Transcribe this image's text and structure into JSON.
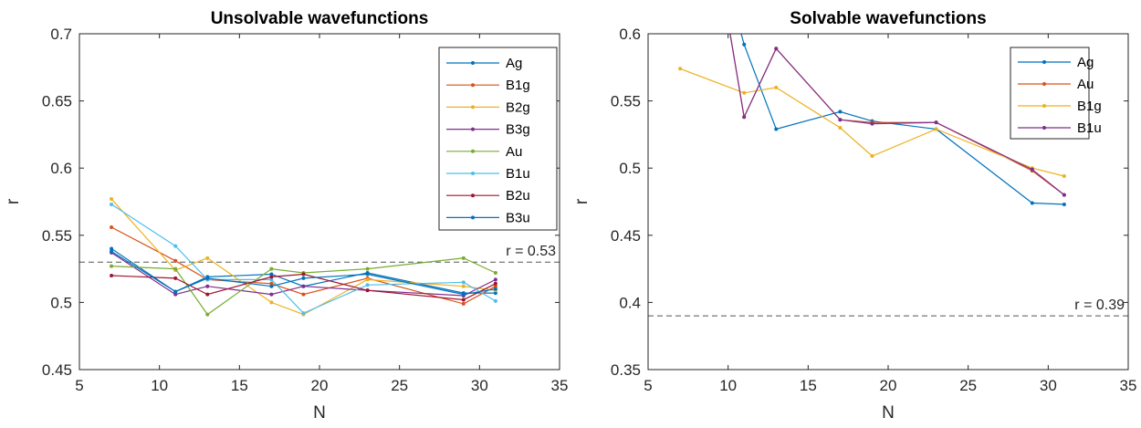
{
  "chart_data": [
    {
      "type": "line",
      "title": "Unsolvable wavefunctions",
      "xlabel": "N",
      "ylabel": "r",
      "xlim": [
        5,
        35
      ],
      "ylim": [
        0.45,
        0.7
      ],
      "xticks": [
        5,
        10,
        15,
        20,
        25,
        30,
        35
      ],
      "yticks": [
        0.45,
        0.5,
        0.55,
        0.6,
        0.65,
        0.7
      ],
      "xtick_labels": [
        "5",
        "10",
        "15",
        "20",
        "25",
        "30",
        "35"
      ],
      "ytick_labels": [
        "0.45",
        "0.5",
        "0.55",
        "0.6",
        "0.65",
        "0.7"
      ],
      "grid": false,
      "legend": "top-right",
      "reference_line": {
        "y": 0.53,
        "label": "r = 0.53",
        "style": "dashed"
      },
      "series": [
        {
          "name": "Ag",
          "color": "#0072BD",
          "x": [
            7,
            11,
            13,
            17,
            19,
            23,
            29,
            31
          ],
          "y": [
            0.54,
            0.508,
            0.519,
            0.521,
            0.512,
            0.522,
            0.507,
            0.507
          ]
        },
        {
          "name": "B1g",
          "color": "#D95319",
          "x": [
            7,
            11,
            13,
            17,
            19,
            23,
            29,
            31
          ],
          "y": [
            0.556,
            0.531,
            0.517,
            0.514,
            0.506,
            0.518,
            0.499,
            0.512
          ]
        },
        {
          "name": "B2g",
          "color": "#EDB120",
          "x": [
            7,
            11,
            13,
            17,
            19,
            23,
            29,
            31
          ],
          "y": [
            0.577,
            0.524,
            0.533,
            0.5,
            0.491,
            0.517,
            0.512,
            0.509
          ]
        },
        {
          "name": "B3g",
          "color": "#7E2F8E",
          "x": [
            7,
            11,
            13,
            17,
            19,
            23,
            29,
            31
          ],
          "y": [
            0.537,
            0.506,
            0.512,
            0.506,
            0.512,
            0.509,
            0.505,
            0.517
          ]
        },
        {
          "name": "Au",
          "color": "#77AC30",
          "x": [
            7,
            11,
            13,
            17,
            19,
            23,
            29,
            31
          ],
          "y": [
            0.527,
            0.525,
            0.491,
            0.525,
            0.522,
            0.525,
            0.533,
            0.522
          ]
        },
        {
          "name": "B1u",
          "color": "#4DBEEE",
          "x": [
            7,
            11,
            13,
            17,
            19,
            23,
            29,
            31
          ],
          "y": [
            0.573,
            0.542,
            0.517,
            0.517,
            0.492,
            0.513,
            0.515,
            0.501
          ]
        },
        {
          "name": "B2u",
          "color": "#A2142F",
          "x": [
            7,
            11,
            13,
            17,
            19,
            23,
            29,
            31
          ],
          "y": [
            0.52,
            0.518,
            0.506,
            0.519,
            0.521,
            0.509,
            0.502,
            0.514
          ]
        },
        {
          "name": "B3u",
          "color": "#0072BD",
          "x": [
            7,
            11,
            13,
            17,
            19,
            23,
            29,
            31
          ],
          "y": [
            0.538,
            0.508,
            0.518,
            0.512,
            0.518,
            0.521,
            0.506,
            0.51
          ]
        }
      ]
    },
    {
      "type": "line",
      "title": "Solvable wavefunctions",
      "xlabel": "N",
      "ylabel": "r",
      "xlim": [
        5,
        35
      ],
      "ylim": [
        0.35,
        0.6
      ],
      "xticks": [
        5,
        10,
        15,
        20,
        25,
        30,
        35
      ],
      "yticks": [
        0.35,
        0.4,
        0.45,
        0.5,
        0.55,
        0.6
      ],
      "xtick_labels": [
        "5",
        "10",
        "15",
        "20",
        "25",
        "30",
        "35"
      ],
      "ytick_labels": [
        "0.35",
        "0.4",
        "0.45",
        "0.5",
        "0.55",
        "0.6"
      ],
      "grid": false,
      "legend": "top-right",
      "reference_line": {
        "y": 0.39,
        "label": "r = 0.39",
        "style": "dashed"
      },
      "series": [
        {
          "name": "Ag",
          "color": "#0072BD",
          "x": [
            9,
            11,
            13,
            17,
            19,
            23,
            29,
            31
          ],
          "y": [
            0.68,
            0.592,
            0.529,
            0.542,
            0.535,
            0.529,
            0.474,
            0.473
          ]
        },
        {
          "name": "Au",
          "color": "#D95319",
          "x": [
            9,
            11,
            13,
            17,
            19,
            23,
            29,
            31
          ],
          "y": [
            0.68,
            0.538,
            0.589,
            0.536,
            0.534,
            0.534,
            0.498,
            0.48
          ]
        },
        {
          "name": "B1g",
          "color": "#EDB120",
          "x": [
            7,
            11,
            13,
            17,
            19,
            23,
            29,
            31
          ],
          "y": [
            0.574,
            0.556,
            0.56,
            0.53,
            0.509,
            0.529,
            0.5,
            0.494
          ]
        },
        {
          "name": "B1u",
          "color": "#7E2F8E",
          "x": [
            9,
            11,
            13,
            17,
            19,
            23,
            29,
            31
          ],
          "y": [
            0.68,
            0.538,
            0.589,
            0.536,
            0.533,
            0.534,
            0.499,
            0.48
          ]
        }
      ]
    }
  ]
}
